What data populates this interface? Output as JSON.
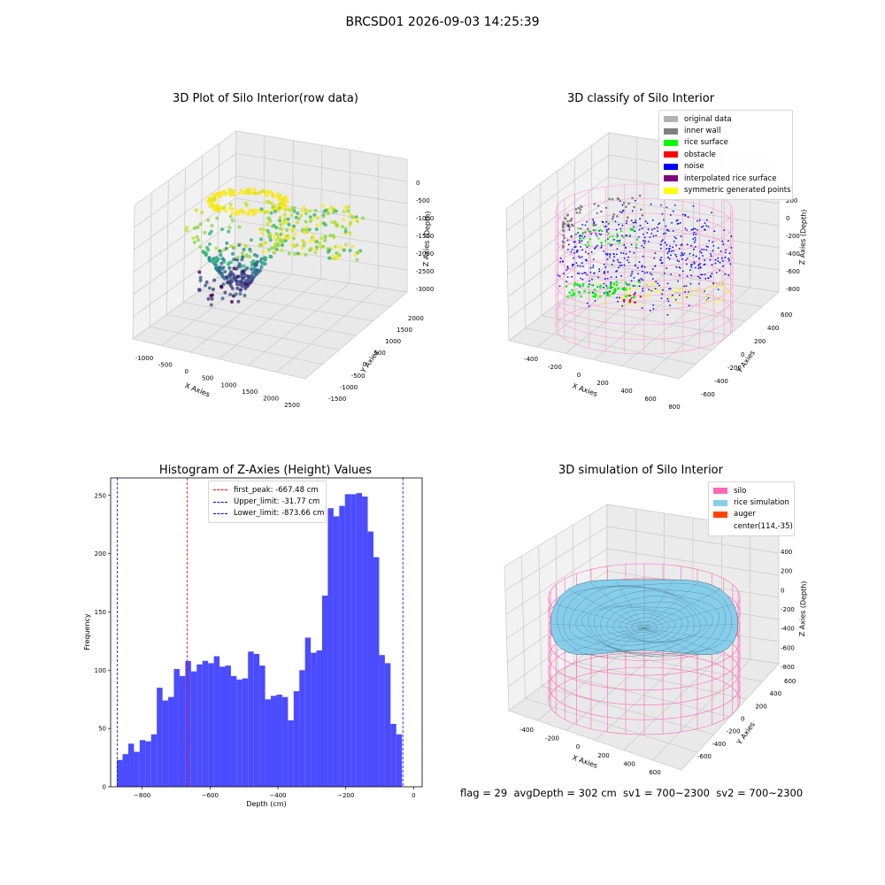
{
  "suptitle": "BRCSD01 2026-09-03 14:25:39",
  "footer": "flag = 29  avgDepth = 302 cm  sv1 = 700~2300  sv2 = 700~2300",
  "colors": {
    "hist_bar": "#4b4bff",
    "first_peak": "#ff0000",
    "limits": "#0000ff",
    "silo": "#ff69b4",
    "rice": "#87ceeb"
  },
  "chart_data": [
    {
      "type": "scatter3d",
      "title": "3D Plot of Silo Interior(row data)",
      "xlabel": "X Axies",
      "ylabel": "Y Axies",
      "zlabel": "Z Axies (Depth)",
      "xticks": [
        "-1000",
        "-500",
        "0",
        "500",
        "1000",
        "1500",
        "2000",
        "2500"
      ],
      "yticks": [
        "-1500",
        "-1000",
        "-500",
        "0",
        "500",
        "1000",
        "1500",
        "2000"
      ],
      "zticks": [
        "0",
        "-500",
        "-1000",
        "-1500",
        "-2000",
        "-2500",
        "-3000"
      ],
      "colormap": "viridis"
    },
    {
      "type": "scatter3d",
      "title": "3D classify of Silo Interior",
      "xlabel": "X Axies",
      "ylabel": "Y Axies",
      "zlabel": "Z Axies (Depth)",
      "xticks": [
        "-400",
        "-200",
        "0",
        "200",
        "400",
        "600",
        "800"
      ],
      "yticks": [
        "-600",
        "-400",
        "-200",
        "0",
        "200",
        "400",
        "600"
      ],
      "zticks": [
        "200",
        "0",
        "-200",
        "-400",
        "-600",
        "-800"
      ],
      "legend": [
        {
          "label": "original data",
          "color": "#b3b3b3"
        },
        {
          "label": "inner wall",
          "color": "#808080"
        },
        {
          "label": "rice surface",
          "color": "#00ff00"
        },
        {
          "label": "obstacle",
          "color": "#ff0000"
        },
        {
          "label": "noise",
          "color": "#0000ff"
        },
        {
          "label": "interpolated rice surface",
          "color": "#800080"
        },
        {
          "label": "symmetric generated points",
          "color": "#ffff00"
        }
      ]
    },
    {
      "type": "bar",
      "title": "Histogram of Z-Axies (Height) Values",
      "xlabel": "Depth (cm)",
      "ylabel": "Frequency",
      "xlim": [
        -893,
        25
      ],
      "ylim": [
        0,
        265
      ],
      "xticks": [
        -800,
        -600,
        -400,
        -200,
        0
      ],
      "xtick_labels": [
        "−800",
        "−600",
        "−400",
        "−200",
        "0"
      ],
      "yticks": [
        0,
        50,
        100,
        150,
        200,
        250
      ],
      "bin_start": -874.5,
      "bin_width": 16.8,
      "values": [
        23,
        28,
        37,
        30,
        40,
        39,
        45,
        85,
        74,
        77,
        101,
        95,
        108,
        99,
        105,
        108,
        106,
        112,
        103,
        104,
        95,
        92,
        93,
        116,
        114,
        104,
        75,
        78,
        79,
        77,
        57,
        82,
        100,
        128,
        115,
        117,
        164,
        239,
        232,
        241,
        251,
        251,
        252,
        249,
        219,
        197,
        113,
        106,
        54,
        45
      ],
      "vlines": [
        {
          "name": "first_peak",
          "x": -667.48,
          "label": "first_peak: -667.48 cm",
          "color": "#ff0000"
        },
        {
          "name": "upper-limit",
          "x": -31.77,
          "label": "Upper_limit: -31.77 cm",
          "color": "#0000ff"
        },
        {
          "name": "lower-limit",
          "x": -873.66,
          "label": "Lower_limit: -873.66 cm",
          "color": "#0000ff"
        }
      ]
    },
    {
      "type": "surface3d",
      "title": "3D simulation of Silo Interior",
      "xlabel": "X Axies",
      "ylabel": "Y Axies",
      "zlabel": "Z Axies (Depth)",
      "xticks": [
        "-400",
        "-200",
        "0",
        "200",
        "400",
        "600"
      ],
      "yticks": [
        "-600",
        "-400",
        "-200",
        "0",
        "200",
        "400",
        "600"
      ],
      "zticks": [
        "400",
        "200",
        "0",
        "-200",
        "-400",
        "-600",
        "-800"
      ],
      "legend": [
        {
          "label": "silo",
          "color": "#ff69b4"
        },
        {
          "label": "rice simulation",
          "color": "#87ceeb"
        },
        {
          "label": "auger",
          "color": "#ff4500"
        },
        {
          "label": "center(114,-35)",
          "color": ""
        }
      ]
    }
  ]
}
